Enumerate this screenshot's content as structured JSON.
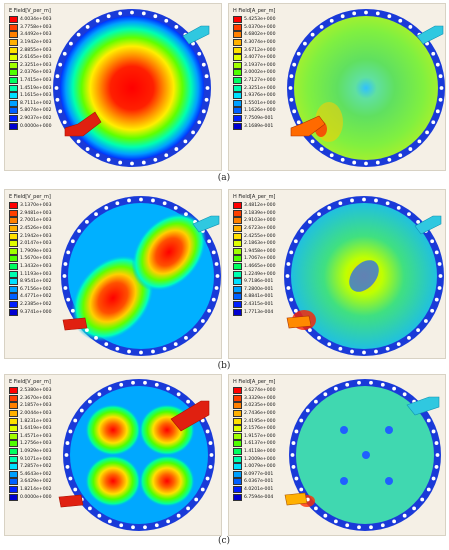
{
  "rows": [
    {
      "label": "(a)",
      "left": {
        "title": "E Field[V_per_m]",
        "labels": [
          "4.0034e+003",
          "3.7758e+003",
          "3.4492e+003",
          "3.1942e+003",
          "2.8855e+003",
          "2.6165e+003",
          "2.3251e+003",
          "2.0376e+003",
          "1.7415e+003",
          "1.4519e+003",
          "1.1615e+003",
          "8.7111e+002",
          "5.8074e+002",
          "2.9037e+002",
          "0.0000e+000"
        ]
      },
      "right": {
        "title": "H Field[A_per_m]",
        "labels": [
          "5.4253e+000",
          "5.0370e+000",
          "4.6802e+000",
          "4.3074e+000",
          "3.6712e+000",
          "3.4077e+000",
          "3.1937e+000",
          "3.0002e+000",
          "2.7127e+000",
          "2.3251e+000",
          "1.9376e+000",
          "1.5501e+000",
          "1.1626e+000",
          "7.7509e-001",
          "3.1689e-001"
        ]
      }
    },
    {
      "label": "(b)",
      "left": {
        "title": "E Field[V_per_m]",
        "labels": [
          "3.1370e+003",
          "2.9481e+003",
          "2.7001e+003",
          "2.4526e+003",
          "2.1942e+003",
          "2.0147e+003",
          "1.7909e+003",
          "1.5670e+003",
          "1.3432e+003",
          "1.1193e+003",
          "8.9541e+002",
          "6.7156e+002",
          "4.4771e+002",
          "2.2385e+002",
          "9.3741e+000"
        ]
      },
      "right": {
        "title": "H Field[A_per_m]",
        "labels": [
          "3.4812e+000",
          "3.1839e+000",
          "2.9103e+000",
          "2.6723e+000",
          "2.4255e+000",
          "2.1863e+000",
          "1.9458e+000",
          "1.7067e+000",
          "1.4665e+000",
          "1.2249e+000",
          "9.7186e-001",
          "7.2800e-001",
          "4.8841e-001",
          "2.4315e-001",
          "1.7713e-004"
        ]
      }
    },
    {
      "label": "(c)",
      "left": {
        "title": "E Field[V_per_m]",
        "labels": [
          "2.5380e+003",
          "2.3670e+003",
          "2.1857e+003",
          "2.0044e+003",
          "1.8231e+003",
          "1.6419e+003",
          "1.4571e+003",
          "1.2756e+003",
          "1.0929e+003",
          "9.1071e+002",
          "7.2857e+002",
          "5.4643e+002",
          "3.6429e+002",
          "1.8214e+002",
          "0.0000e+000"
        ]
      },
      "right": {
        "title": "H Field[A_per_m]",
        "labels": [
          "3.6274e+000",
          "3.3329e+000",
          "3.0235e+000",
          "2.7436e+000",
          "2.4195e+000",
          "2.1576e+000",
          "1.9157e+000",
          "1.6137e+000",
          "1.4118e+000",
          "1.2009e+000",
          "1.0079e+000",
          "8.0977e-001",
          "6.0367e-001",
          "4.0201e-001",
          "6.7594e-004"
        ]
      }
    }
  ],
  "scale_colors": [
    "#ff0000",
    "#ff4000",
    "#ff8000",
    "#ffb000",
    "#ffe000",
    "#e0ff00",
    "#a0ff00",
    "#50ff00",
    "#00ff60",
    "#00ffb0",
    "#00e0ff",
    "#00a0ff",
    "#0060ff",
    "#0020ff",
    "#0000d0"
  ]
}
